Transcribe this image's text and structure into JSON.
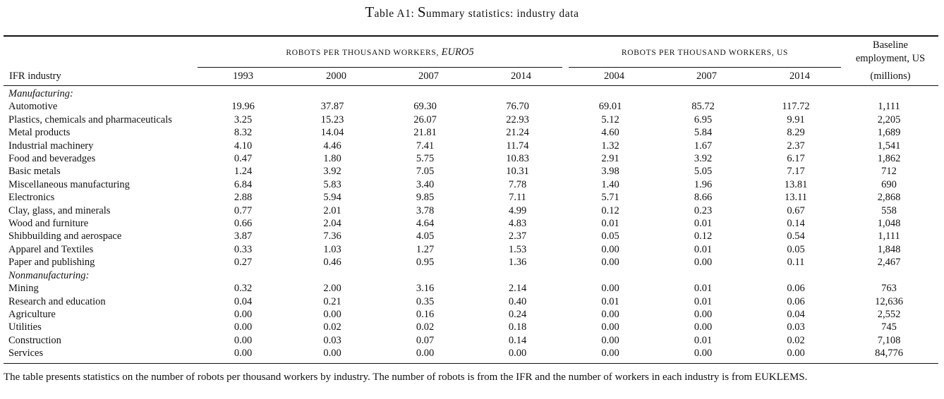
{
  "title": {
    "lead": "T",
    "rest": "able A1: ",
    "s_lead": "S",
    "s_rest": "ummary statistics: industry data"
  },
  "groups": {
    "euro": {
      "label": "Robots per thousand workers,",
      "suffix": "EURO5"
    },
    "us": {
      "label": "Robots per thousand workers, US"
    },
    "baseline": {
      "line1": "Baseline",
      "line2": "employment, US",
      "line3": "(millions)"
    }
  },
  "columns": {
    "industry": "IFR industry",
    "years": [
      "1993",
      "2000",
      "2007",
      "2014",
      "2004",
      "2007",
      "2014"
    ]
  },
  "sections": [
    {
      "label": "Manufacturing:",
      "rows": [
        {
          "name": "Automotive",
          "values": [
            "19.96",
            "37.87",
            "69.30",
            "76.70",
            "69.01",
            "85.72",
            "117.72",
            "1,111"
          ]
        },
        {
          "name": "Plastics, chemicals and pharmaceuticals",
          "values": [
            "3.25",
            "15.23",
            "26.07",
            "22.93",
            "5.12",
            "6.95",
            "9.91",
            "2,205"
          ]
        },
        {
          "name": "Metal products",
          "values": [
            "8.32",
            "14.04",
            "21.81",
            "21.24",
            "4.60",
            "5.84",
            "8.29",
            "1,689"
          ]
        },
        {
          "name": "Industrial machinery",
          "values": [
            "4.10",
            "4.46",
            "7.41",
            "11.74",
            "1.32",
            "1.67",
            "2.37",
            "1,541"
          ]
        },
        {
          "name": "Food and beveradges",
          "values": [
            "0.47",
            "1.80",
            "5.75",
            "10.83",
            "2.91",
            "3.92",
            "6.17",
            "1,862"
          ]
        },
        {
          "name": "Basic metals",
          "values": [
            "1.24",
            "3.92",
            "7.05",
            "10.31",
            "3.98",
            "5.05",
            "7.17",
            "712"
          ]
        },
        {
          "name": "Miscellaneous manufacturing",
          "values": [
            "6.84",
            "5.83",
            "3.40",
            "7.78",
            "1.40",
            "1.96",
            "13.81",
            "690"
          ]
        },
        {
          "name": "Electronics",
          "values": [
            "2.88",
            "5.94",
            "9.85",
            "7.11",
            "5.71",
            "8.66",
            "13.11",
            "2,868"
          ]
        },
        {
          "name": "Clay, glass, and minerals",
          "values": [
            "0.77",
            "2.01",
            "3.78",
            "4.99",
            "0.12",
            "0.23",
            "0.67",
            "558"
          ]
        },
        {
          "name": "Wood and furniture",
          "values": [
            "0.66",
            "2.04",
            "4.64",
            "4.83",
            "0.01",
            "0.01",
            "0.14",
            "1,048"
          ]
        },
        {
          "name": "Shibbuilding and aerospace",
          "values": [
            "3.87",
            "7.36",
            "4.05",
            "2.37",
            "0.05",
            "0.12",
            "0.54",
            "1,111"
          ]
        },
        {
          "name": "Apparel and Textiles",
          "values": [
            "0.33",
            "1.03",
            "1.27",
            "1.53",
            "0.00",
            "0.01",
            "0.05",
            "1,848"
          ]
        },
        {
          "name": "Paper and publishing",
          "values": [
            "0.27",
            "0.46",
            "0.95",
            "1.36",
            "0.00",
            "0.00",
            "0.11",
            "2,467"
          ]
        }
      ]
    },
    {
      "label": "Nonmanufacturing:",
      "rows": [
        {
          "name": "Mining",
          "values": [
            "0.32",
            "2.00",
            "3.16",
            "2.14",
            "0.00",
            "0.01",
            "0.06",
            "763"
          ]
        },
        {
          "name": "Research and education",
          "values": [
            "0.04",
            "0.21",
            "0.35",
            "0.40",
            "0.01",
            "0.01",
            "0.06",
            "12,636"
          ]
        },
        {
          "name": "Agriculture",
          "values": [
            "0.00",
            "0.00",
            "0.16",
            "0.24",
            "0.00",
            "0.00",
            "0.04",
            "2,552"
          ]
        },
        {
          "name": "Utilities",
          "values": [
            "0.00",
            "0.02",
            "0.02",
            "0.18",
            "0.00",
            "0.00",
            "0.03",
            "745"
          ]
        },
        {
          "name": "Construction",
          "values": [
            "0.00",
            "0.03",
            "0.07",
            "0.14",
            "0.00",
            "0.01",
            "0.02",
            "7,108"
          ]
        },
        {
          "name": "Services",
          "values": [
            "0.00",
            "0.00",
            "0.00",
            "0.00",
            "0.00",
            "0.00",
            "0.00",
            "84,776"
          ]
        }
      ]
    }
  ],
  "note": "The table presents statistics on the number of robots per thousand workers by industry. The number of robots is from the IFR and the number of workers in each industry is from EUKLEMS."
}
